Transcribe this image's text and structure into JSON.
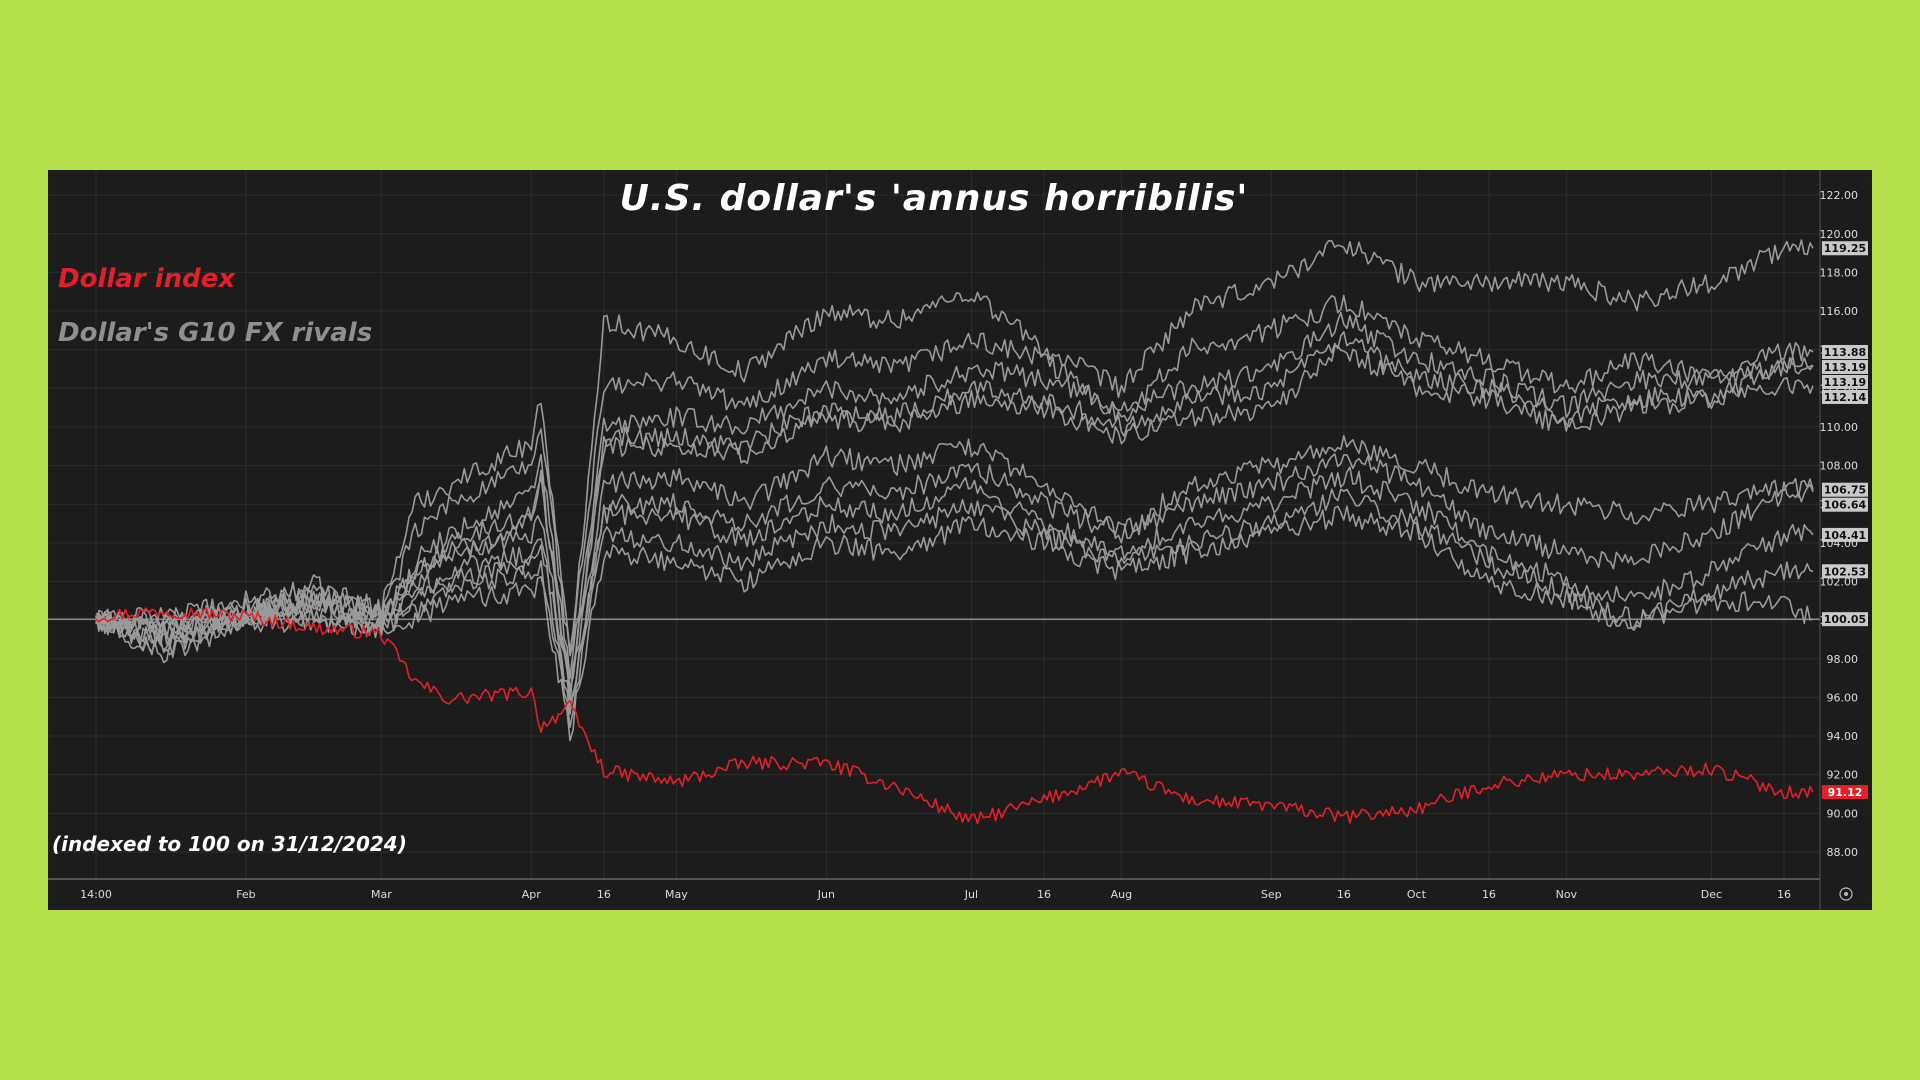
{
  "colors": {
    "background": "#b5df4b",
    "panel": "#1c1c1c",
    "dollar_index": "#e3202a",
    "rivals": "#9a9a9a",
    "grid": "#2c2c2c"
  },
  "chart_data": {
    "type": "line",
    "title": "U.S. dollar's 'annus horribilis'",
    "note": "(indexed to 100 on 31/12/2024)",
    "xlabel": "",
    "ylabel": "",
    "ylim": [
      86.6,
      123.3
    ],
    "grid": true,
    "legend": {
      "placement": "top-left",
      "entries": [
        "Dollar index",
        "Dollar's G10 FX rivals"
      ]
    },
    "yticks": [
      "88.00",
      "90.00",
      "92.00",
      "94.00",
      "96.00",
      "98.00",
      "100.00",
      "102.00",
      "104.00",
      "106.00",
      "108.00",
      "110.00",
      "112.00",
      "114.00",
      "116.00",
      "118.00",
      "120.00",
      "122.00"
    ],
    "xticks": [
      {
        "label": "14:00",
        "date": "2025-01-01"
      },
      {
        "label": "Feb",
        "date": "2025-02-01"
      },
      {
        "label": "Mar",
        "date": "2025-03-01"
      },
      {
        "label": "Apr",
        "date": "2025-04-01"
      },
      {
        "label": "16",
        "date": "2025-04-16"
      },
      {
        "label": "May",
        "date": "2025-05-01"
      },
      {
        "label": "Jun",
        "date": "2025-06-01"
      },
      {
        "label": "Jul",
        "date": "2025-07-01"
      },
      {
        "label": "16",
        "date": "2025-07-16"
      },
      {
        "label": "Aug",
        "date": "2025-08-01"
      },
      {
        "label": "Sep",
        "date": "2025-09-01"
      },
      {
        "label": "16",
        "date": "2025-09-16"
      },
      {
        "label": "Oct",
        "date": "2025-10-01"
      },
      {
        "label": "16",
        "date": "2025-10-16"
      },
      {
        "label": "Nov",
        "date": "2025-11-01"
      },
      {
        "label": "Dec",
        "date": "2025-12-01"
      },
      {
        "label": "16",
        "date": "2025-12-16"
      }
    ],
    "baseline": 100.05,
    "x": [
      "2025-01-01",
      "2025-01-15",
      "2025-02-01",
      "2025-02-15",
      "2025-03-01",
      "2025-03-08",
      "2025-03-15",
      "2025-04-01",
      "2025-04-03",
      "2025-04-09",
      "2025-04-16",
      "2025-05-01",
      "2025-05-15",
      "2025-06-01",
      "2025-06-15",
      "2025-07-01",
      "2025-07-16",
      "2025-08-01",
      "2025-08-15",
      "2025-09-01",
      "2025-09-16",
      "2025-10-01",
      "2025-10-16",
      "2025-11-01",
      "2025-11-15",
      "2025-12-01",
      "2025-12-16",
      "2025-12-22"
    ],
    "series": [
      {
        "name": "Dollar index",
        "color": "#e3202a",
        "end_label": "91.12",
        "values": [
          100.2,
          100.5,
          100.2,
          99.6,
          99.3,
          96.8,
          95.9,
          96.3,
          94.5,
          95.5,
          92.2,
          91.6,
          92.6,
          92.6,
          91.4,
          89.6,
          90.7,
          92.1,
          90.7,
          90.4,
          89.8,
          90.2,
          91.5,
          92.0,
          92.0,
          92.3,
          91.1,
          91.1
        ]
      },
      {
        "values": [
          100.0,
          99.6,
          100.6,
          101.8,
          100.6,
          106.0,
          107.0,
          109.2,
          111.5,
          98.0,
          115.5,
          114.5,
          112.8,
          116.0,
          115.5,
          117.0,
          114.0,
          112.0,
          116.0,
          117.5,
          119.6,
          117.5,
          117.5,
          117.5,
          116.5,
          117.5,
          119.2,
          119.25
        ],
        "end_label": "119.25"
      },
      {
        "values": [
          100.0,
          99.4,
          100.4,
          101.2,
          100.3,
          104.5,
          106.0,
          108.0,
          110.0,
          98.0,
          112.0,
          112.5,
          111.0,
          113.5,
          113.0,
          114.5,
          113.5,
          110.5,
          114.0,
          115.0,
          116.5,
          114.5,
          113.5,
          112.0,
          113.5,
          112.5,
          113.9,
          113.88
        ],
        "end_label": "113.88"
      },
      {
        "values": [
          100.0,
          100.3,
          100.2,
          100.8,
          99.7,
          103.0,
          104.5,
          106.5,
          108.5,
          97.0,
          110.0,
          110.5,
          110.0,
          112.0,
          111.5,
          113.0,
          112.5,
          111.0,
          112.0,
          113.0,
          115.5,
          113.5,
          112.5,
          111.0,
          112.5,
          112.5,
          113.2,
          113.19
        ],
        "end_label": "113.19"
      },
      {
        "values": [
          100.0,
          99.5,
          100.2,
          101.0,
          100.2,
          102.5,
          104.0,
          105.5,
          107.5,
          96.5,
          109.5,
          109.5,
          109.0,
          111.0,
          110.5,
          112.0,
          111.5,
          110.0,
          111.5,
          112.0,
          114.5,
          112.5,
          112.0,
          110.5,
          111.5,
          111.5,
          113.2,
          113.19
        ],
        "end_label": "113.19"
      },
      {
        "values": [
          100.0,
          98.8,
          100.0,
          100.8,
          100.0,
          102.0,
          103.5,
          105.0,
          107.0,
          96.0,
          109.0,
          109.0,
          108.5,
          110.5,
          110.0,
          111.5,
          111.0,
          109.5,
          110.5,
          111.0,
          114.0,
          112.0,
          111.5,
          110.0,
          111.0,
          111.5,
          112.1,
          112.14
        ],
        "end_label": "112.14"
      },
      {
        "values": [
          100.0,
          100.0,
          101.0,
          101.5,
          100.5,
          102.5,
          103.5,
          104.5,
          105.5,
          96.0,
          107.0,
          107.5,
          106.0,
          108.5,
          108.0,
          109.0,
          107.0,
          104.5,
          107.0,
          108.0,
          109.0,
          108.0,
          106.5,
          106.0,
          105.5,
          106.0,
          106.8,
          106.75
        ],
        "end_label": "106.75"
      },
      {
        "values": [
          100.0,
          99.2,
          100.5,
          101.0,
          100.2,
          101.5,
          102.5,
          103.5,
          104.5,
          95.5,
          106.0,
          106.0,
          105.0,
          107.0,
          106.5,
          108.0,
          106.0,
          104.5,
          106.0,
          107.0,
          108.5,
          107.0,
          104.5,
          103.5,
          103.0,
          104.5,
          106.6,
          106.64
        ],
        "end_label": "106.64"
      },
      {
        "values": [
          100.0,
          98.5,
          100.0,
          100.5,
          99.8,
          101.0,
          102.0,
          103.0,
          104.0,
          95.0,
          105.5,
          105.5,
          104.0,
          106.0,
          105.5,
          107.0,
          105.0,
          103.5,
          105.0,
          106.0,
          107.5,
          106.0,
          103.5,
          102.0,
          101.0,
          102.5,
          104.4,
          104.41
        ],
        "end_label": "104.41"
      },
      {
        "values": [
          100.0,
          99.0,
          100.0,
          100.2,
          99.6,
          100.5,
          101.5,
          102.5,
          103.0,
          94.5,
          104.5,
          104.0,
          103.0,
          105.0,
          104.5,
          106.0,
          104.5,
          103.0,
          104.0,
          105.0,
          106.5,
          105.0,
          103.0,
          101.5,
          100.0,
          101.5,
          102.5,
          102.53
        ],
        "end_label": "102.53"
      },
      {
        "values": [
          100.0,
          98.2,
          99.8,
          100.0,
          99.4,
          100.0,
          101.0,
          101.5,
          102.0,
          94.0,
          103.5,
          103.0,
          102.0,
          104.0,
          103.5,
          105.0,
          104.0,
          102.5,
          103.5,
          104.5,
          105.5,
          104.5,
          102.0,
          101.0,
          99.8,
          101.0,
          101.0,
          100.05
        ],
        "end_label": "100.05"
      }
    ]
  }
}
